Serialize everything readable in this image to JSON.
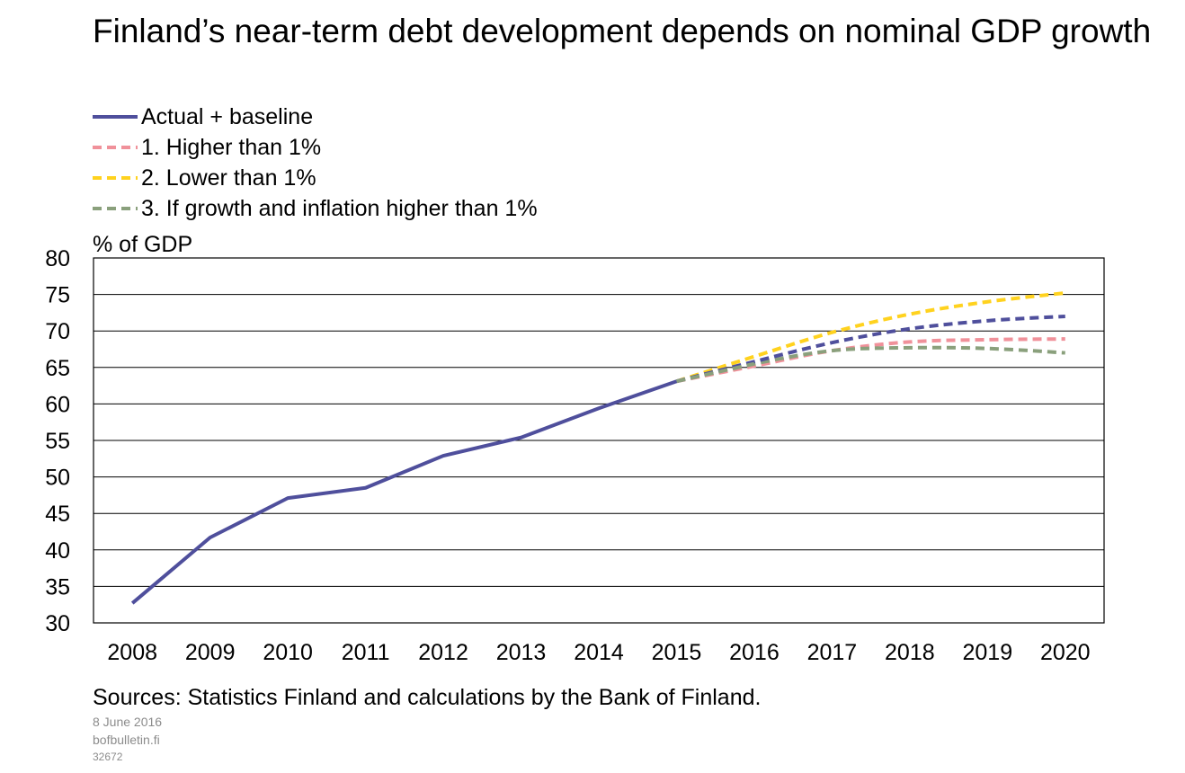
{
  "title": "Finland’s near-term debt development depends on nominal GDP growth",
  "legend": [
    {
      "label": "Actual + baseline",
      "color": "#4f4f9c",
      "dash": "solid"
    },
    {
      "label": "1. Higher than 1%",
      "color": "#f0919a",
      "dash": "dashed"
    },
    {
      "label": "2. Lower than 1%",
      "color": "#ffd21e",
      "dash": "dashed"
    },
    {
      "label": "3. If growth and inflation higher than 1%",
      "color": "#8aa07c",
      "dash": "dashed"
    }
  ],
  "unit_label": "% of GDP",
  "sources": "Sources: Statistics Finland and calculations by the Bank of Finland.",
  "date": "8 June 2016",
  "site": "bofbulletin.fi",
  "chart_id": "32672",
  "chart_data": {
    "type": "line",
    "title": "Finland’s near-term debt development depends on nominal GDP growth",
    "ylabel": "% of GDP",
    "categories": [
      "2008",
      "2009",
      "2010",
      "2011",
      "2012",
      "2013",
      "2014",
      "2015",
      "2016",
      "2017",
      "2018",
      "2019",
      "2020"
    ],
    "ylim": [
      30,
      80
    ],
    "yticks": [
      30,
      35,
      40,
      45,
      50,
      55,
      60,
      65,
      70,
      75,
      80
    ],
    "grid": true,
    "legend_position": "top",
    "series": [
      {
        "name": "Actual + baseline",
        "color": "#4f4f9c",
        "actual": [
          32.7,
          41.7,
          47.1,
          48.5,
          52.9,
          55.4,
          59.4,
          63.1,
          null,
          null,
          null,
          null,
          null
        ],
        "baseline": [
          null,
          null,
          null,
          null,
          null,
          null,
          null,
          63.1,
          65.8,
          68.4,
          70.3,
          71.4,
          72.0
        ]
      },
      {
        "name": "1. Higher than 1%",
        "color": "#f0919a",
        "values": [
          null,
          null,
          null,
          null,
          null,
          null,
          null,
          63.1,
          65.2,
          67.3,
          68.5,
          68.8,
          68.9
        ]
      },
      {
        "name": "2. Lower than 1%",
        "color": "#ffd21e",
        "values": [
          null,
          null,
          null,
          null,
          null,
          null,
          null,
          63.1,
          66.5,
          69.8,
          72.3,
          74.0,
          75.2
        ]
      },
      {
        "name": "3. If growth and inflation higher than 1%",
        "color": "#8aa07c",
        "values": [
          null,
          null,
          null,
          null,
          null,
          null,
          null,
          63.1,
          65.5,
          67.3,
          67.7,
          67.6,
          67.0
        ]
      }
    ]
  }
}
